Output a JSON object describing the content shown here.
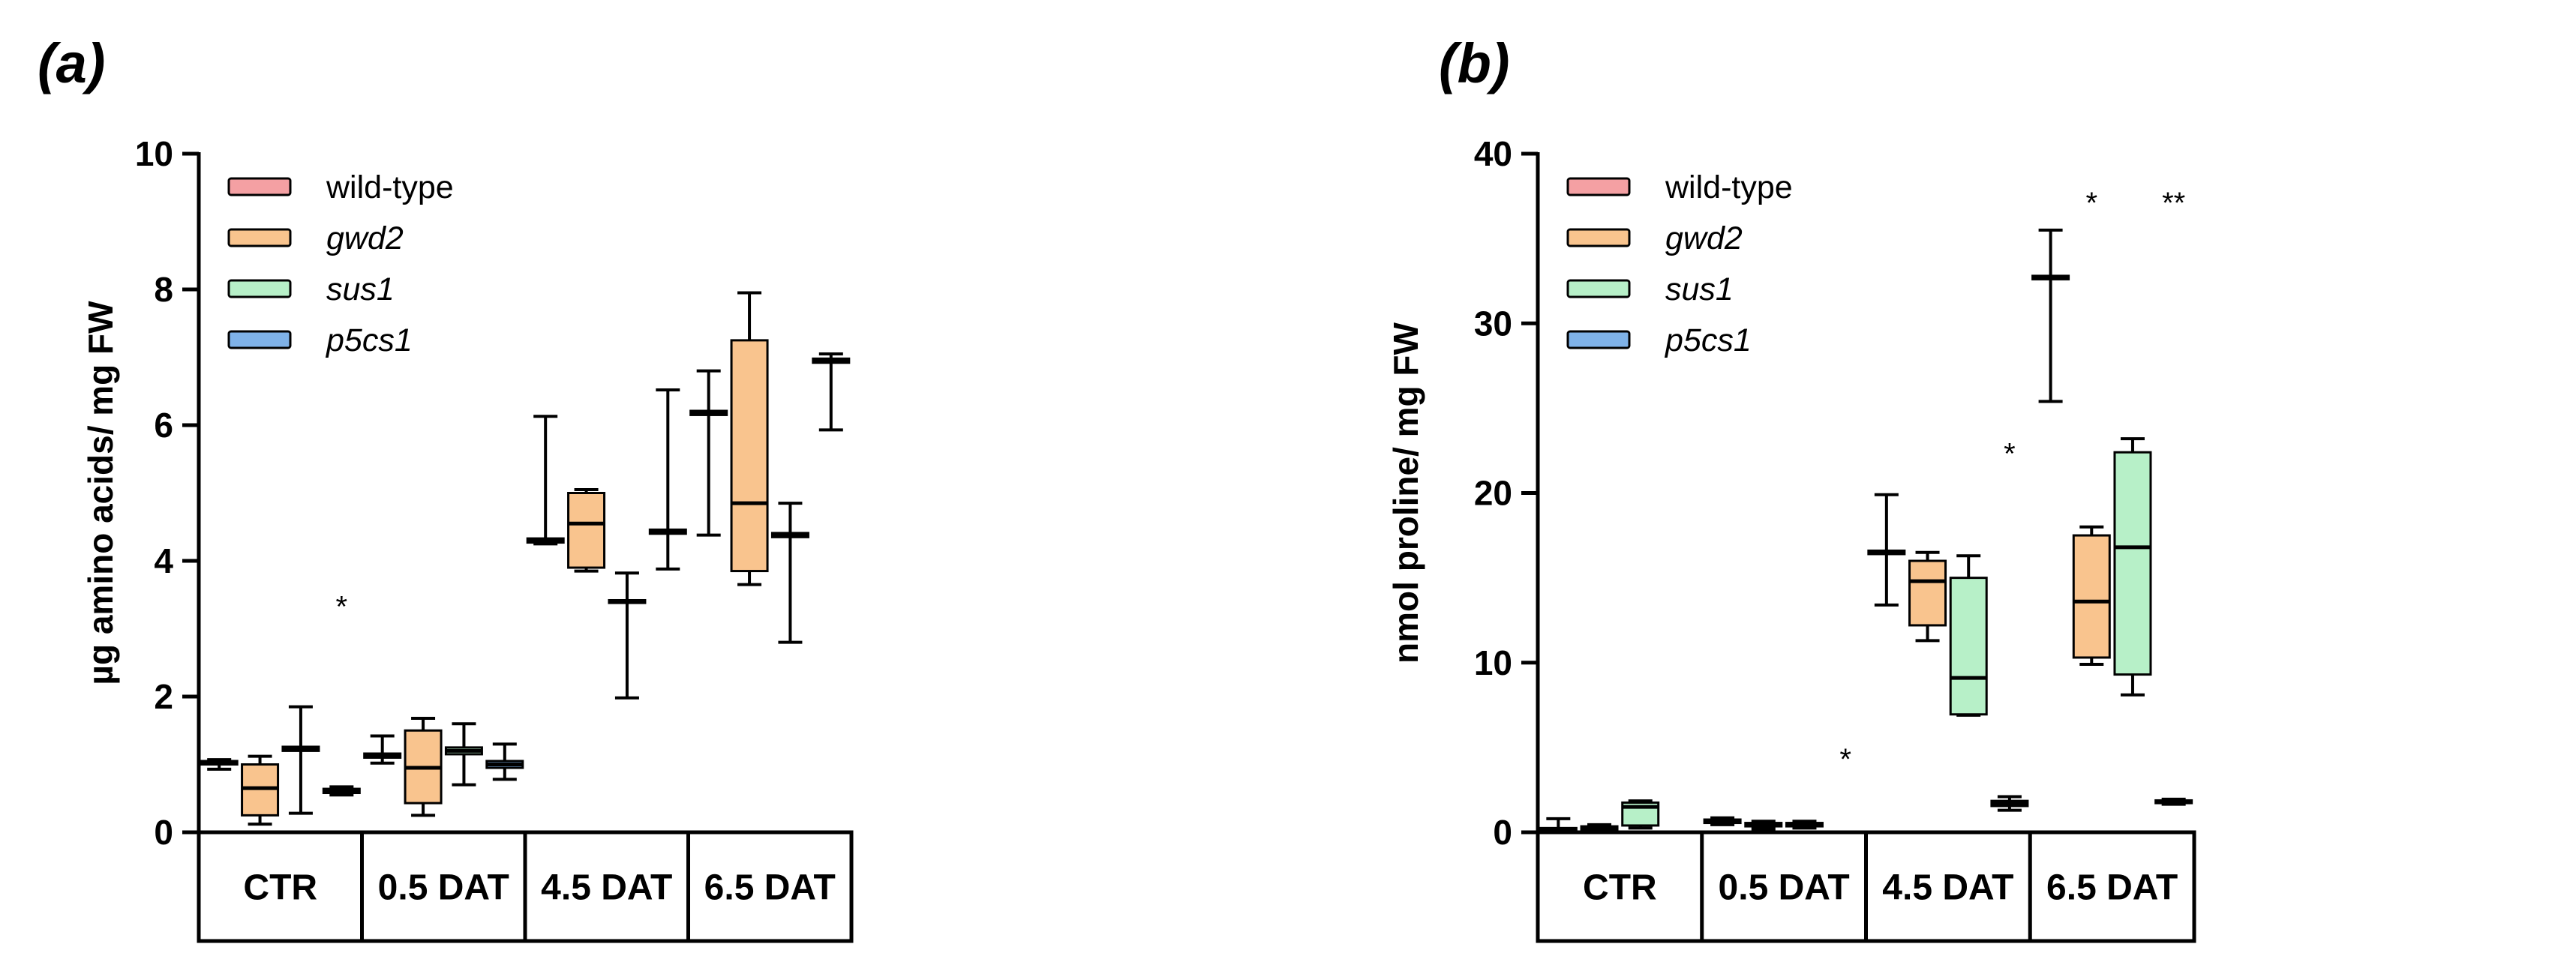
{
  "colors": {
    "wild-type": "#f4a0a3",
    "gwd2": "#f9c48e",
    "sus1": "#b7f0c8",
    "p5cs1": "#7fb2e8"
  },
  "chart_data": [
    {
      "type": "box",
      "panel": "(a)",
      "ylabel": "µg amino acids/ mg  FW",
      "ylim": [
        0,
        10
      ],
      "yticks": [
        0,
        2,
        4,
        6,
        8,
        10
      ],
      "yticklabels": [
        "0",
        "2",
        "4",
        "6",
        "8",
        "10"
      ],
      "categories": [
        "CTR",
        "0.5 DAT",
        "4.5 DAT",
        "6.5 DAT"
      ],
      "legend": [
        {
          "name": "wild-type",
          "italic": false
        },
        {
          "name": "gwd2",
          "italic": true
        },
        {
          "name": "sus1",
          "italic": true
        },
        {
          "name": "p5cs1",
          "italic": true
        }
      ],
      "boxes": [
        {
          "cat": 0,
          "series": "wild-type",
          "min": 0.93,
          "q1": 1.0,
          "median": 1.03,
          "q3": 1.05,
          "max": 1.07
        },
        {
          "cat": 0,
          "series": "gwd2",
          "min": 0.12,
          "q1": 0.25,
          "median": 0.65,
          "q3": 1.0,
          "max": 1.12
        },
        {
          "cat": 0,
          "series": "sus1",
          "min": 0.28,
          "q1": 1.2,
          "median": 1.23,
          "q3": 1.26,
          "max": 1.85
        },
        {
          "cat": 0,
          "series": "p5cs1",
          "min": 0.55,
          "q1": 0.58,
          "median": 0.61,
          "q3": 0.64,
          "max": 0.67
        },
        {
          "cat": 1,
          "series": "wild-type",
          "min": 1.02,
          "q1": 1.1,
          "median": 1.13,
          "q3": 1.16,
          "max": 1.42
        },
        {
          "cat": 1,
          "series": "gwd2",
          "min": 0.25,
          "q1": 0.43,
          "median": 0.95,
          "q3": 1.5,
          "max": 1.68
        },
        {
          "cat": 1,
          "series": "sus1",
          "min": 0.7,
          "q1": 1.15,
          "median": 1.2,
          "q3": 1.25,
          "max": 1.6
        },
        {
          "cat": 1,
          "series": "p5cs1",
          "min": 0.78,
          "q1": 0.95,
          "median": 1.0,
          "q3": 1.05,
          "max": 1.3
        },
        {
          "cat": 2,
          "series": "wild-type",
          "min": 4.25,
          "q1": 4.27,
          "median": 4.3,
          "q3": 4.33,
          "max": 6.13
        },
        {
          "cat": 2,
          "series": "gwd2",
          "min": 3.85,
          "q1": 3.9,
          "median": 4.55,
          "q3": 5.0,
          "max": 5.05
        },
        {
          "cat": 2,
          "series": "sus1",
          "min": 1.98,
          "q1": 3.38,
          "median": 3.4,
          "q3": 3.42,
          "max": 3.82
        },
        {
          "cat": 2,
          "series": "p5cs1",
          "min": 3.88,
          "q1": 4.4,
          "median": 4.43,
          "q3": 4.46,
          "max": 6.52
        },
        {
          "cat": 3,
          "series": "wild-type",
          "min": 4.38,
          "q1": 6.15,
          "median": 6.18,
          "q3": 6.21,
          "max": 6.8
        },
        {
          "cat": 3,
          "series": "gwd2",
          "min": 3.65,
          "q1": 3.85,
          "median": 4.85,
          "q3": 7.25,
          "max": 7.95
        },
        {
          "cat": 3,
          "series": "sus1",
          "min": 2.8,
          "q1": 4.35,
          "median": 4.38,
          "q3": 4.41,
          "max": 4.85
        },
        {
          "cat": 3,
          "series": "p5cs1",
          "min": 5.93,
          "q1": 6.92,
          "median": 6.95,
          "q3": 6.98,
          "max": 7.05
        }
      ],
      "annotations": [
        {
          "text": "*",
          "cat": 0,
          "series": "p5cs1",
          "y": 3.4
        }
      ]
    },
    {
      "type": "box",
      "panel": "(b)",
      "ylabel": "nmol proline/ mg FW",
      "ylim": [
        0,
        40
      ],
      "yticks": [
        0,
        10,
        20,
        30,
        40
      ],
      "yticklabels": [
        "0",
        "10",
        "20",
        "30",
        "40"
      ],
      "categories": [
        "CTR",
        "0.5 DAT",
        "4.5 DAT",
        "6.5 DAT"
      ],
      "legend": [
        {
          "name": "wild-type",
          "italic": false
        },
        {
          "name": "gwd2",
          "italic": true
        },
        {
          "name": "sus1",
          "italic": true
        },
        {
          "name": "p5cs1",
          "italic": true
        }
      ],
      "boxes": [
        {
          "cat": 0,
          "series": "wild-type",
          "min": 0.0,
          "q1": 0.05,
          "median": 0.15,
          "q3": 0.25,
          "max": 0.8
        },
        {
          "cat": 0,
          "series": "gwd2",
          "min": 0.05,
          "q1": 0.15,
          "median": 0.25,
          "q3": 0.35,
          "max": 0.45
        },
        {
          "cat": 0,
          "series": "sus1",
          "min": 0.25,
          "q1": 0.4,
          "median": 1.5,
          "q3": 1.75,
          "max": 1.85
        },
        {
          "cat": 1,
          "series": "wild-type",
          "min": 0.45,
          "q1": 0.55,
          "median": 0.65,
          "q3": 0.75,
          "max": 0.85
        },
        {
          "cat": 1,
          "series": "gwd2",
          "min": 0.2,
          "q1": 0.35,
          "median": 0.45,
          "q3": 0.55,
          "max": 0.65
        },
        {
          "cat": 1,
          "series": "sus1",
          "min": 0.25,
          "q1": 0.35,
          "median": 0.45,
          "q3": 0.55,
          "max": 0.65
        },
        {
          "cat": 2,
          "series": "wild-type",
          "min": 13.4,
          "q1": 16.4,
          "median": 16.5,
          "q3": 16.6,
          "max": 19.9
        },
        {
          "cat": 2,
          "series": "gwd2",
          "min": 11.3,
          "q1": 12.2,
          "median": 14.8,
          "q3": 16.0,
          "max": 16.5
        },
        {
          "cat": 2,
          "series": "sus1",
          "min": 6.9,
          "q1": 6.95,
          "median": 9.1,
          "q3": 15.0,
          "max": 16.3
        },
        {
          "cat": 2,
          "series": "p5cs1",
          "min": 1.3,
          "q1": 1.55,
          "median": 1.7,
          "q3": 1.85,
          "max": 2.1
        },
        {
          "cat": 3,
          "series": "wild-type",
          "min": 25.4,
          "q1": 32.6,
          "median": 32.7,
          "q3": 32.8,
          "max": 35.5
        },
        {
          "cat": 3,
          "series": "gwd2",
          "min": 9.9,
          "q1": 10.3,
          "median": 13.6,
          "q3": 17.5,
          "max": 18.0
        },
        {
          "cat": 3,
          "series": "sus1",
          "min": 8.1,
          "q1": 9.3,
          "median": 16.8,
          "q3": 22.4,
          "max": 23.2
        },
        {
          "cat": 3,
          "series": "p5cs1",
          "min": 1.65,
          "q1": 1.72,
          "median": 1.8,
          "q3": 1.88,
          "max": 1.95
        }
      ],
      "annotations": [
        {
          "text": "*",
          "cat": 1,
          "series": "p5cs1",
          "y": 4.6
        },
        {
          "text": "*",
          "cat": 2,
          "series": "p5cs1",
          "y": 22.6
        },
        {
          "text": "*",
          "cat": 3,
          "series": "gwd2",
          "y": 37.4
        },
        {
          "text": "**",
          "cat": 3,
          "series": "p5cs1",
          "y": 37.4
        }
      ]
    }
  ]
}
